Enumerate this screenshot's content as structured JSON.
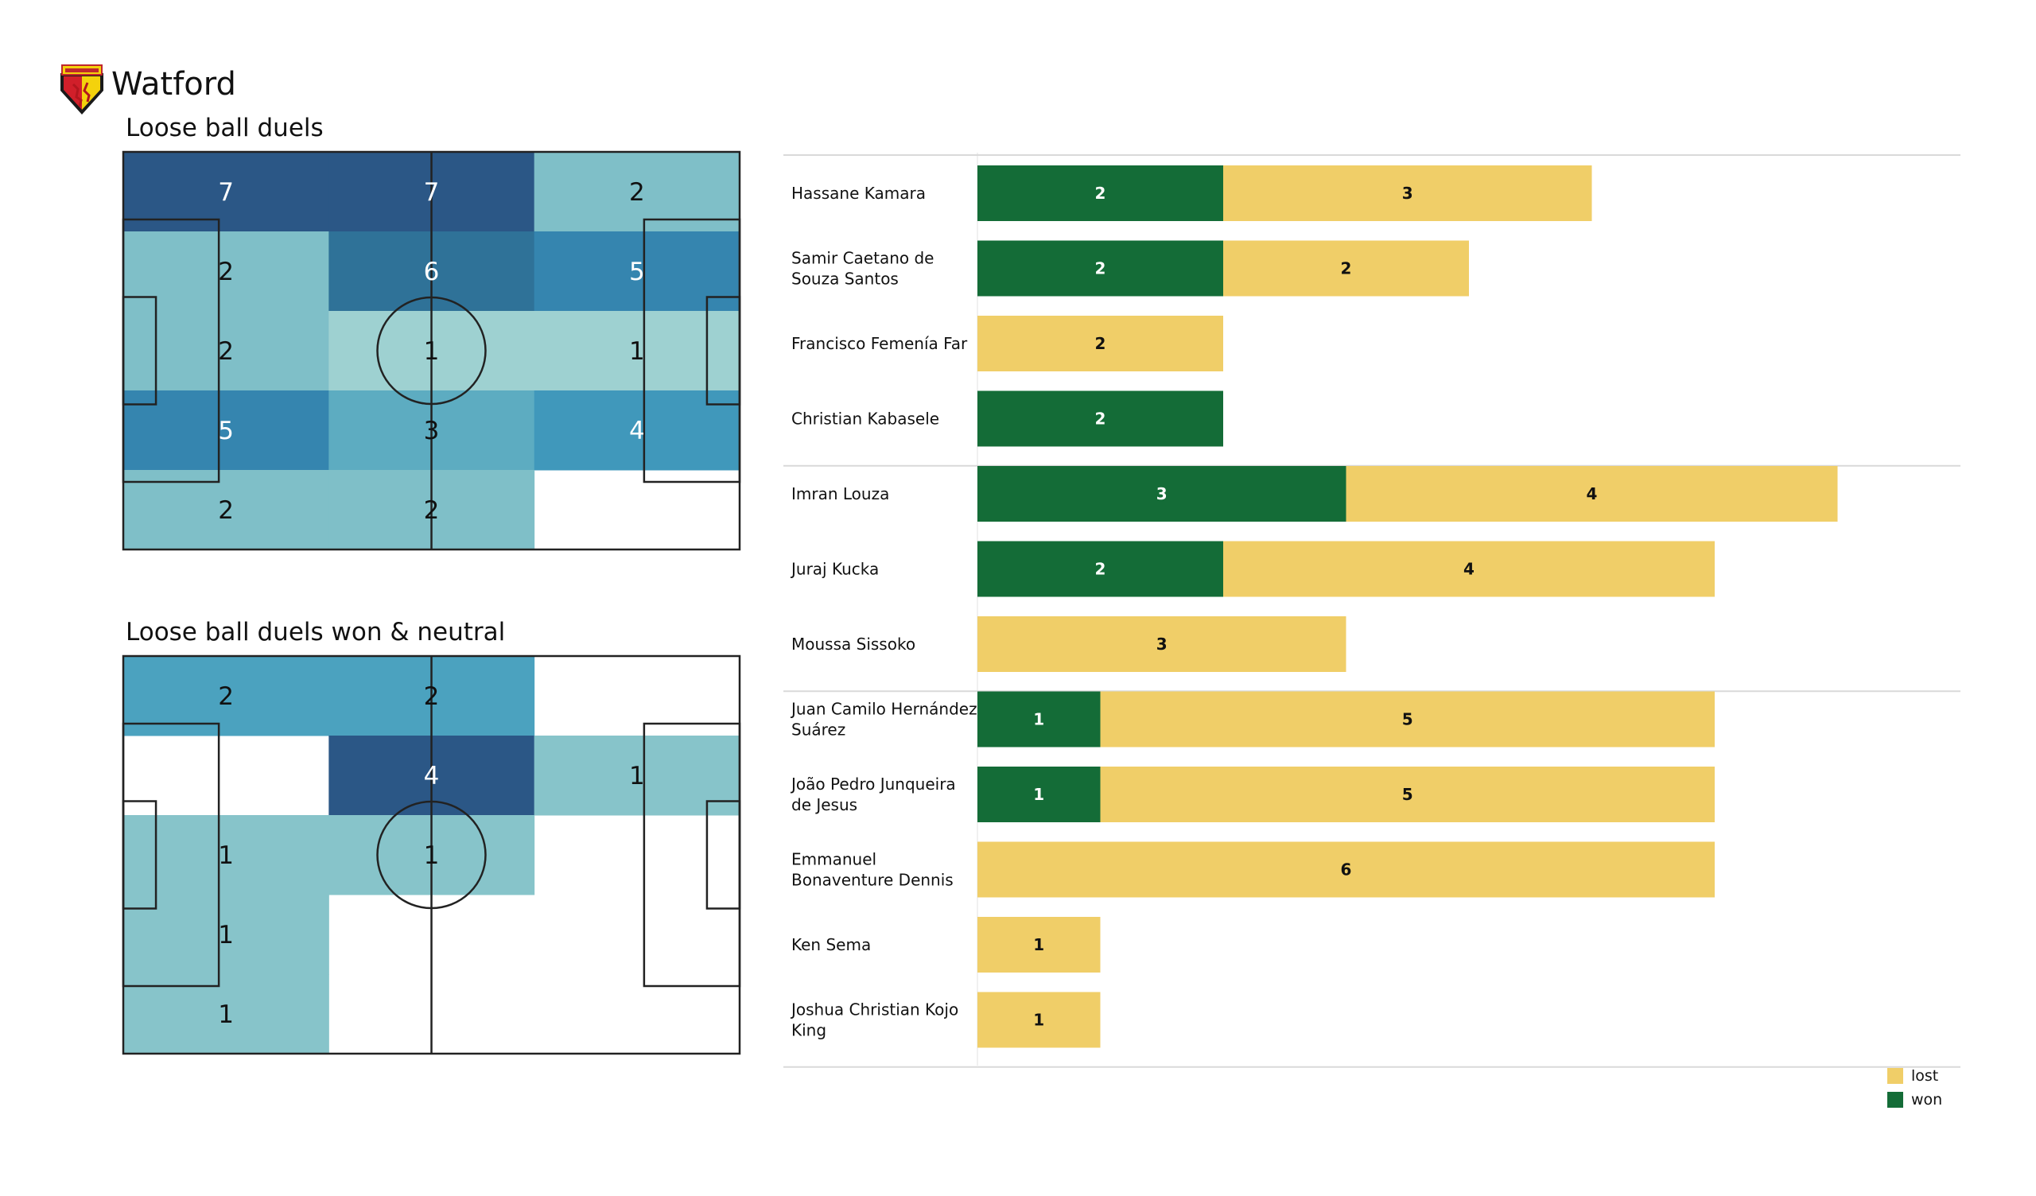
{
  "team": {
    "name": "Watford",
    "logo_icon": "watford-crest-icon"
  },
  "colors": {
    "won": "#146c37",
    "lost": "#f0ce68",
    "line": "#222222",
    "separator": "#d9d9d9"
  },
  "chart_data": [
    {
      "type": "heatmap",
      "title": "Loose ball duels",
      "grid": "5 rows x 3 columns over a football pitch (top row first, left column first)",
      "values": [
        [
          7,
          7,
          2
        ],
        [
          2,
          6,
          5
        ],
        [
          2,
          1,
          1
        ],
        [
          5,
          3,
          4
        ],
        [
          2,
          2,
          0
        ]
      ],
      "labels_shown": [
        [
          "7",
          "7",
          "2"
        ],
        [
          "2",
          "6",
          "5"
        ],
        [
          "2",
          "1",
          "1"
        ],
        [
          "5",
          "3",
          "4"
        ],
        [
          "2",
          "2",
          ""
        ]
      ],
      "colormap": "YlGnBu-like (light teal to dark blue)",
      "max": 7
    },
    {
      "type": "heatmap",
      "title": "Loose ball duels won & neutral",
      "grid": "5 rows x 3 columns over a football pitch (top row first, left column first)",
      "values": [
        [
          2,
          2,
          0
        ],
        [
          0,
          4,
          1
        ],
        [
          1,
          1,
          0
        ],
        [
          1,
          0,
          0
        ],
        [
          1,
          0,
          0
        ]
      ],
      "labels_shown": [
        [
          "2",
          "2",
          ""
        ],
        [
          "",
          "4",
          "1"
        ],
        [
          "1",
          "1",
          ""
        ],
        [
          "1",
          "",
          ""
        ],
        [
          "1",
          "",
          ""
        ]
      ],
      "colormap": "YlGnBu-like (light teal to dark blue)",
      "max": 4
    },
    {
      "type": "bar",
      "orientation": "horizontal-stacked",
      "title": "",
      "categories": [
        "Hassane Kamara",
        "Samir Caetano de Souza Santos",
        "Francisco Femenía Far",
        "Christian Kabasele",
        "Imran Louza",
        "Juraj Kucka",
        "Moussa Sissoko",
        "Juan Camilo Hernández Suárez",
        "João Pedro Junqueira de Jesus",
        "Emmanuel Bonaventure Dennis",
        "Ken Sema",
        "Joshua Christian Kojo King"
      ],
      "category_lines": [
        [
          "Hassane Kamara"
        ],
        [
          "Samir Caetano de",
          "Souza Santos"
        ],
        [
          "Francisco Femenía Far"
        ],
        [
          "Christian Kabasele"
        ],
        [
          "Imran Louza"
        ],
        [
          "Juraj Kucka"
        ],
        [
          "Moussa Sissoko"
        ],
        [
          "Juan Camilo Hernández",
          "Suárez"
        ],
        [
          "João Pedro Junqueira",
          "de Jesus"
        ],
        [
          "Emmanuel",
          "Bonaventure Dennis"
        ],
        [
          "Ken Sema"
        ],
        [
          "Joshua Christian Kojo",
          "King"
        ]
      ],
      "groups": [
        [
          0,
          1,
          2,
          3
        ],
        [
          4,
          5,
          6
        ],
        [
          7,
          8,
          9,
          10,
          11
        ]
      ],
      "series": [
        {
          "name": "won",
          "values": [
            2,
            2,
            0,
            2,
            3,
            2,
            0,
            1,
            1,
            0,
            0,
            0
          ]
        },
        {
          "name": "lost",
          "values": [
            3,
            2,
            2,
            0,
            4,
            4,
            3,
            5,
            5,
            6,
            1,
            1
          ]
        }
      ],
      "xlim": [
        0,
        8
      ],
      "legend": {
        "position": "bottom-right",
        "entries": [
          "lost",
          "won"
        ]
      }
    }
  ]
}
